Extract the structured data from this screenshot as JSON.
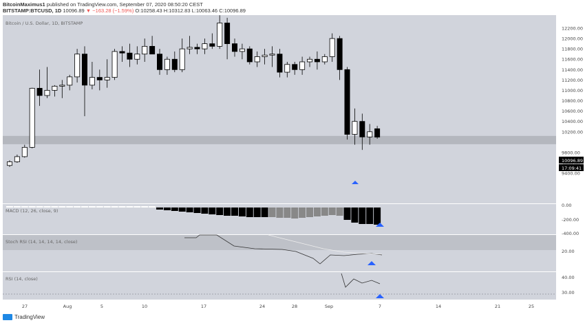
{
  "header": {
    "author": "BitcoinMaximus1",
    "published_text": "published on TradingView.com, September 07, 2020 08:50:20 CEST",
    "symbol": "BITSTAMP:BTCUSD, 1D",
    "last": "10096.89",
    "change": "▼ −163.28 (−1.59%)",
    "ohlc": "O:10258.43 H:10312.83 L:10063.46 C:10096.89"
  },
  "main_label": "Bitcoin / U.S. Dollar, 1D, BITSTAMP",
  "price_badge": "10096.89",
  "time_badge": "17:09:41",
  "footer_brand": "TradingView",
  "colors": {
    "panel": "#d1d4dc",
    "zone": "#b4b7be",
    "bull": "#ffffff",
    "bear": "#000000",
    "arrow": "#2962ff"
  },
  "chart_data": {
    "type": "candlestick",
    "price_axis": [
      "12200.00",
      "12000.00",
      "11800.00",
      "11600.00",
      "11400.00",
      "11200.00",
      "11000.00",
      "10800.00",
      "10600.00",
      "10400.00",
      "10200.00",
      "9800.00",
      "9600.00",
      "9400.00"
    ],
    "x_ticks": [
      "27",
      "Aug",
      "5",
      "10",
      "17",
      "24",
      "28",
      "Sep",
      "7",
      "14",
      "21",
      "25"
    ],
    "support_zone": [
      9960,
      10120
    ],
    "candles": [
      [
        9550,
        9650,
        9520,
        9620
      ],
      [
        9620,
        9760,
        9600,
        9720
      ],
      [
        9720,
        9950,
        9700,
        9900
      ],
      [
        9900,
        11050,
        9880,
        11040
      ],
      [
        11040,
        11400,
        10700,
        10900
      ],
      [
        10900,
        11450,
        10850,
        11000
      ],
      [
        11000,
        11100,
        10880,
        11080
      ],
      [
        11080,
        11200,
        10850,
        11100
      ],
      [
        11100,
        11300,
        11000,
        11260
      ],
      [
        11260,
        11800,
        11150,
        11700
      ],
      [
        11700,
        11850,
        10500,
        11100
      ],
      [
        11100,
        11550,
        11020,
        11250
      ],
      [
        11250,
        11400,
        11000,
        11200
      ],
      [
        11200,
        11600,
        11050,
        11250
      ],
      [
        11250,
        11800,
        11200,
        11750
      ],
      [
        11750,
        11850,
        11550,
        11720
      ],
      [
        11720,
        11900,
        11450,
        11600
      ],
      [
        11600,
        11850,
        11500,
        11700
      ],
      [
        11700,
        12000,
        11550,
        11850
      ],
      [
        11850,
        12050,
        11700,
        11700
      ],
      [
        11700,
        11800,
        11300,
        11400
      ],
      [
        11400,
        11650,
        11300,
        11600
      ],
      [
        11600,
        11750,
        11350,
        11400
      ],
      [
        11400,
        12000,
        11350,
        11800
      ],
      [
        11800,
        12050,
        11700,
        11830
      ],
      [
        11830,
        11900,
        11700,
        11800
      ],
      [
        11800,
        12000,
        11700,
        11900
      ],
      [
        11900,
        12100,
        11800,
        11850
      ],
      [
        11850,
        12450,
        11800,
        12300
      ],
      [
        12300,
        12400,
        11600,
        11900
      ],
      [
        11900,
        12000,
        11650,
        11750
      ],
      [
        11750,
        11900,
        11600,
        11800
      ],
      [
        11800,
        11850,
        11500,
        11550
      ],
      [
        11550,
        11750,
        11450,
        11650
      ],
      [
        11650,
        11800,
        11500,
        11680
      ],
      [
        11680,
        11850,
        11450,
        11700
      ],
      [
        11700,
        11800,
        11250,
        11350
      ],
      [
        11350,
        11550,
        11250,
        11500
      ],
      [
        11500,
        11550,
        11300,
        11400
      ],
      [
        11400,
        11650,
        11300,
        11550
      ],
      [
        11550,
        11650,
        11450,
        11600
      ],
      [
        11600,
        11750,
        11400,
        11550
      ],
      [
        11550,
        11700,
        11500,
        11650
      ],
      [
        11650,
        12100,
        11550,
        12000
      ],
      [
        12000,
        12050,
        11200,
        11400
      ],
      [
        11400,
        11450,
        10050,
        10150
      ],
      [
        10150,
        10650,
        9950,
        10400
      ],
      [
        10400,
        10550,
        9850,
        10100
      ],
      [
        10100,
        10350,
        9950,
        10200
      ],
      [
        10258.43,
        10312.83,
        10063.46,
        10096.89
      ]
    ],
    "macd": {
      "label": "MACD (12, 26, close, 9)",
      "axis": [
        "0.00",
        "-200.00",
        "-400.00"
      ]
    },
    "stoch_rsi": {
      "label": "Stoch RSI (14, 14, 14, 14, close)",
      "axis": [
        "20.00"
      ]
    },
    "rsi": {
      "label": "RSI (14, close)",
      "axis": [
        "40.00",
        "30.00"
      ]
    }
  }
}
